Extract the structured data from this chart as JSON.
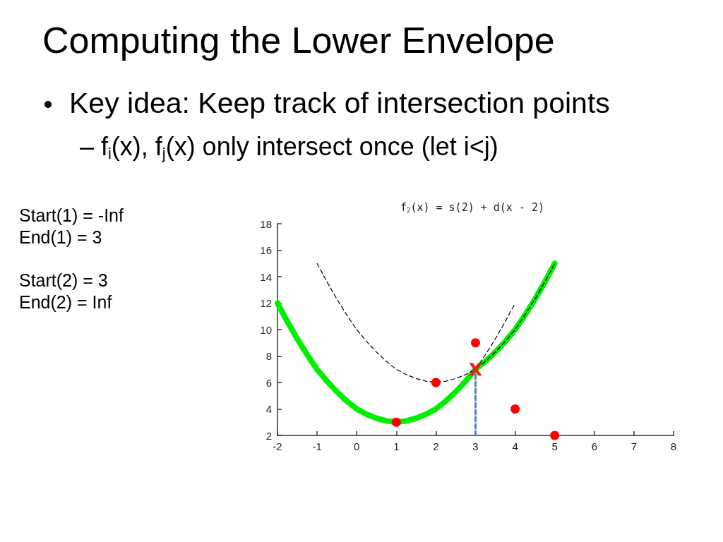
{
  "chart_data": {
    "type": "line",
    "title": "Computing the Lower Envelope",
    "subtitle": "f$_{2}$(x) = s(2) + d(x - 2)",
    "annotations": [
      "Key idea: Keep track of intersection points",
      "– f$_{i}$(x), f$_{j}$(x) only intersect once (let i<j)",
      "Start(1) = -Inf\nEnd(1) = 3",
      "Start(2) = 3\nEnd(2) = Inf"
    ],
    "xlim": [
      -2,
      8
    ],
    "xticks": [
      -2,
      -1,
      0,
      1,
      2,
      3,
      4,
      5,
      6,
      7,
      8
    ],
    "ylim": [
      2,
      18
    ],
    "yticks": [
      2,
      4,
      6,
      8,
      10,
      12,
      14,
      16,
      18
    ],
    "grid": false,
    "series": [
      {
        "color": "#00ee00",
        "line_style": "solid",
        "marker": "none",
        "x": [
          -2,
          -1.75,
          -1.5,
          -1.25,
          -1,
          -0.75,
          -0.5,
          -0.25,
          0,
          0.25,
          0.5,
          0.75,
          1,
          1.25,
          1.5,
          1.75,
          2,
          2.25,
          2.5,
          2.75,
          3,
          3.25,
          3.5,
          3.75,
          4,
          4.25,
          4.5,
          4.75,
          5
        ],
        "values": [
          12,
          10.6,
          9.3,
          8.1,
          7,
          6.1,
          5.3,
          4.6,
          4,
          3.6,
          3.3,
          3.1,
          3,
          3.1,
          3.3,
          3.6,
          4,
          4.6,
          5.3,
          6.1,
          7,
          7.6,
          8.3,
          9.1,
          10,
          11.1,
          12.3,
          13.6,
          15
        ]
      },
      {
        "color": "#000000",
        "line_style": "dashed",
        "marker": "none",
        "x": [
          -1,
          -0.75,
          -0.5,
          -0.25,
          0,
          0.25,
          0.5,
          0.75,
          1,
          1.25,
          1.5,
          1.75,
          2,
          2.25,
          2.5,
          2.75,
          3,
          3.25,
          3.5,
          3.75,
          4,
          4.25,
          4.5,
          4.75,
          5
        ],
        "values": [
          15,
          13.6,
          12.3,
          11.1,
          10,
          9.1,
          8.3,
          7.6,
          7,
          6.6,
          6.3,
          6.1,
          6,
          6.1,
          6.3,
          6.6,
          7,
          7.6,
          8.3,
          9.1,
          10,
          11.1,
          12.3,
          13.6,
          15
        ]
      },
      {
        "color": "#000000",
        "line_style": "dashed",
        "marker": "none",
        "x": [
          3,
          3.25,
          3.5,
          3.75,
          4
        ],
        "values": [
          7,
          8.1,
          9.3,
          10.6,
          12
        ]
      },
      {
        "color": "#4f81bd",
        "line_style": "dashed",
        "marker": "none",
        "x": [
          3,
          3
        ],
        "values": [
          2,
          7
        ]
      },
      {
        "type": "scatter",
        "color": "#ff0000",
        "marker": "circle",
        "x": [
          1,
          2,
          3,
          4,
          5
        ],
        "values": [
          3,
          6,
          9,
          4,
          2
        ]
      },
      {
        "type": "scatter",
        "color": "#e8201a",
        "marker": "cross",
        "x": [
          3
        ],
        "values": [
          7
        ]
      }
    ]
  }
}
